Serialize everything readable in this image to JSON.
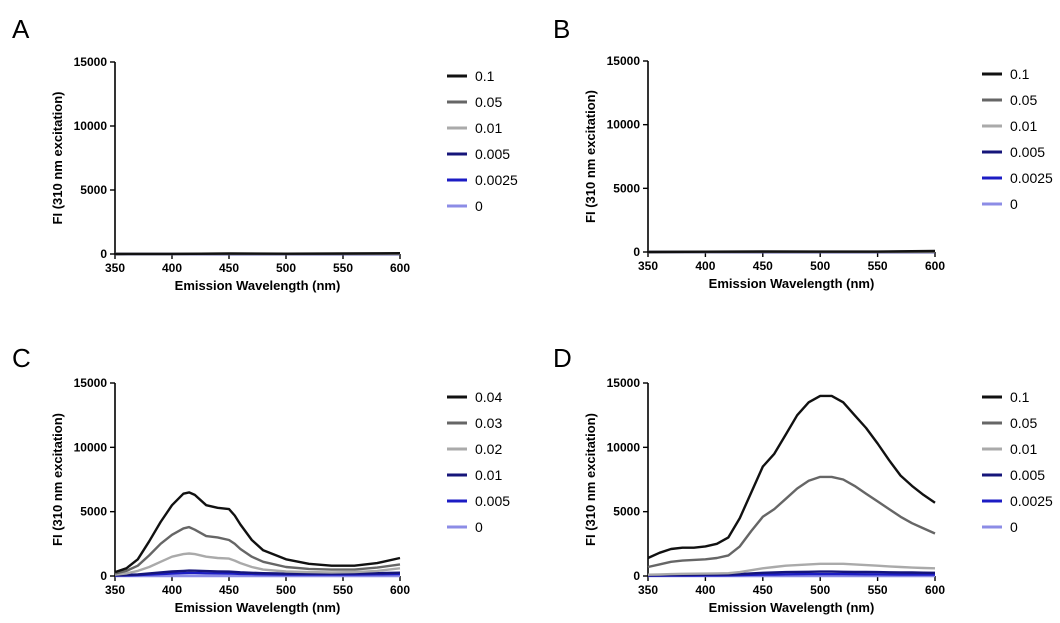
{
  "chart_data": [
    {
      "panel": "A",
      "type": "line",
      "xlabel": "Emission Wavelength (nm)",
      "ylabel": "FI (310 nm excitation)",
      "xlim": [
        350,
        600
      ],
      "ylim": [
        0,
        15000
      ],
      "xticks": [
        350,
        400,
        450,
        500,
        550,
        600
      ],
      "yticks": [
        0,
        5000,
        10000,
        15000
      ],
      "legend_position": "right",
      "x": [
        350,
        400,
        450,
        500,
        550,
        600
      ],
      "series": [
        {
          "name": "0.1",
          "color": "#111111",
          "values": [
            0,
            10,
            40,
            20,
            40,
            60
          ]
        },
        {
          "name": "0.05",
          "color": "#666666",
          "values": [
            0,
            5,
            20,
            10,
            20,
            30
          ]
        },
        {
          "name": "0.01",
          "color": "#aaaaaa",
          "values": [
            0,
            0,
            5,
            5,
            5,
            10
          ]
        },
        {
          "name": "0.005",
          "color": "#16157a",
          "values": [
            0,
            0,
            0,
            0,
            0,
            0
          ]
        },
        {
          "name": "0.0025",
          "color": "#1c1cc4",
          "values": [
            0,
            0,
            0,
            0,
            0,
            0
          ]
        },
        {
          "name": "0",
          "color": "#8c8ce6",
          "values": [
            0,
            0,
            0,
            0,
            0,
            0
          ]
        }
      ]
    },
    {
      "panel": "B",
      "type": "line",
      "xlabel": "Emission Wavelength (nm)",
      "ylabel": "FI (310 nm excitation)",
      "xlim": [
        350,
        600
      ],
      "ylim": [
        0,
        15000
      ],
      "xticks": [
        350,
        400,
        450,
        500,
        550,
        600
      ],
      "yticks": [
        0,
        5000,
        10000,
        15000
      ],
      "legend_position": "right",
      "x": [
        350,
        400,
        450,
        500,
        550,
        600
      ],
      "series": [
        {
          "name": "0.1",
          "color": "#111111",
          "values": [
            0,
            20,
            40,
            30,
            30,
            80
          ]
        },
        {
          "name": "0.05",
          "color": "#666666",
          "values": [
            0,
            10,
            20,
            15,
            15,
            40
          ]
        },
        {
          "name": "0.01",
          "color": "#aaaaaa",
          "values": [
            0,
            0,
            5,
            5,
            5,
            10
          ]
        },
        {
          "name": "0.005",
          "color": "#16157a",
          "values": [
            0,
            0,
            0,
            0,
            0,
            0
          ]
        },
        {
          "name": "0.0025",
          "color": "#1c1cc4",
          "values": [
            0,
            0,
            0,
            0,
            0,
            0
          ]
        },
        {
          "name": "0",
          "color": "#8c8ce6",
          "values": [
            0,
            0,
            0,
            0,
            0,
            0
          ]
        }
      ]
    },
    {
      "panel": "C",
      "type": "line",
      "xlabel": "Emission Wavelength (nm)",
      "ylabel": "FI (310 nm excitation)",
      "xlim": [
        350,
        600
      ],
      "ylim": [
        0,
        15000
      ],
      "xticks": [
        350,
        400,
        450,
        500,
        550,
        600
      ],
      "yticks": [
        0,
        5000,
        10000,
        15000
      ],
      "legend_position": "right",
      "x": [
        350,
        360,
        370,
        380,
        390,
        400,
        410,
        415,
        420,
        430,
        440,
        450,
        455,
        460,
        470,
        480,
        500,
        520,
        540,
        560,
        580,
        600
      ],
      "series": [
        {
          "name": "0.04",
          "color": "#111111",
          "values": [
            300,
            600,
            1300,
            2700,
            4200,
            5500,
            6400,
            6500,
            6300,
            5500,
            5300,
            5200,
            4700,
            4000,
            2800,
            2000,
            1300,
            950,
            800,
            800,
            1000,
            1400
          ]
        },
        {
          "name": "0.03",
          "color": "#666666",
          "values": [
            200,
            400,
            800,
            1600,
            2500,
            3200,
            3700,
            3800,
            3600,
            3100,
            3000,
            2800,
            2500,
            2100,
            1500,
            1100,
            700,
            550,
            500,
            500,
            650,
            900
          ]
        },
        {
          "name": "0.02",
          "color": "#aaaaaa",
          "values": [
            100,
            200,
            400,
            700,
            1100,
            1500,
            1700,
            1750,
            1700,
            1500,
            1400,
            1350,
            1200,
            1000,
            700,
            500,
            350,
            300,
            280,
            300,
            400,
            600
          ]
        },
        {
          "name": "0.01",
          "color": "#16157a",
          "values": [
            50,
            80,
            120,
            200,
            280,
            350,
            400,
            420,
            410,
            380,
            360,
            340,
            320,
            290,
            250,
            220,
            190,
            180,
            180,
            190,
            220,
            260
          ]
        },
        {
          "name": "0.005",
          "color": "#1c1cc4",
          "values": [
            30,
            50,
            70,
            110,
            150,
            190,
            220,
            230,
            225,
            210,
            200,
            190,
            180,
            165,
            145,
            130,
            115,
            110,
            110,
            115,
            130,
            150
          ]
        },
        {
          "name": "0",
          "color": "#8c8ce6",
          "values": [
            0,
            0,
            0,
            0,
            0,
            0,
            0,
            0,
            0,
            0,
            0,
            0,
            0,
            0,
            0,
            0,
            0,
            0,
            0,
            0,
            0,
            0
          ]
        }
      ]
    },
    {
      "panel": "D",
      "type": "line",
      "xlabel": "Emission Wavelength (nm)",
      "ylabel": "FI (310 nm excitation)",
      "xlim": [
        350,
        600
      ],
      "ylim": [
        0,
        15000
      ],
      "xticks": [
        350,
        400,
        450,
        500,
        550,
        600
      ],
      "yticks": [
        0,
        5000,
        10000,
        15000
      ],
      "legend_position": "right",
      "x": [
        350,
        360,
        370,
        380,
        390,
        400,
        410,
        420,
        430,
        440,
        450,
        460,
        470,
        480,
        490,
        500,
        510,
        520,
        530,
        540,
        550,
        560,
        570,
        580,
        590,
        600
      ],
      "series": [
        {
          "name": "0.1",
          "color": "#111111",
          "values": [
            1400,
            1800,
            2100,
            2200,
            2200,
            2300,
            2500,
            3000,
            4500,
            6500,
            8500,
            9500,
            11000,
            12500,
            13500,
            14000,
            14000,
            13500,
            12500,
            11500,
            10300,
            9000,
            7800,
            7000,
            6300,
            5700
          ]
        },
        {
          "name": "0.05",
          "color": "#666666",
          "values": [
            700,
            900,
            1100,
            1200,
            1250,
            1300,
            1400,
            1600,
            2300,
            3500,
            4600,
            5200,
            6000,
            6800,
            7400,
            7700,
            7700,
            7500,
            7000,
            6400,
            5800,
            5200,
            4600,
            4100,
            3700,
            3300
          ]
        },
        {
          "name": "0.01",
          "color": "#aaaaaa",
          "values": [
            100,
            120,
            150,
            170,
            180,
            190,
            200,
            220,
            300,
            450,
            600,
            700,
            800,
            850,
            900,
            950,
            950,
            950,
            900,
            850,
            800,
            750,
            700,
            650,
            620,
            600
          ]
        },
        {
          "name": "0.005",
          "color": "#16157a",
          "values": [
            50,
            60,
            70,
            80,
            90,
            100,
            110,
            120,
            150,
            200,
            250,
            280,
            300,
            320,
            330,
            340,
            340,
            330,
            320,
            310,
            300,
            290,
            280,
            270,
            260,
            250
          ]
        },
        {
          "name": "0.0025",
          "color": "#1c1cc4",
          "values": [
            20,
            25,
            30,
            35,
            40,
            45,
            50,
            55,
            70,
            90,
            110,
            120,
            130,
            140,
            145,
            150,
            150,
            145,
            140,
            135,
            130,
            125,
            120,
            115,
            110,
            105
          ]
        },
        {
          "name": "0",
          "color": "#8c8ce6",
          "values": [
            0,
            0,
            0,
            0,
            0,
            0,
            0,
            0,
            0,
            0,
            0,
            0,
            0,
            0,
            0,
            0,
            0,
            0,
            0,
            0,
            0,
            0,
            0,
            0,
            0,
            0
          ]
        }
      ]
    }
  ]
}
